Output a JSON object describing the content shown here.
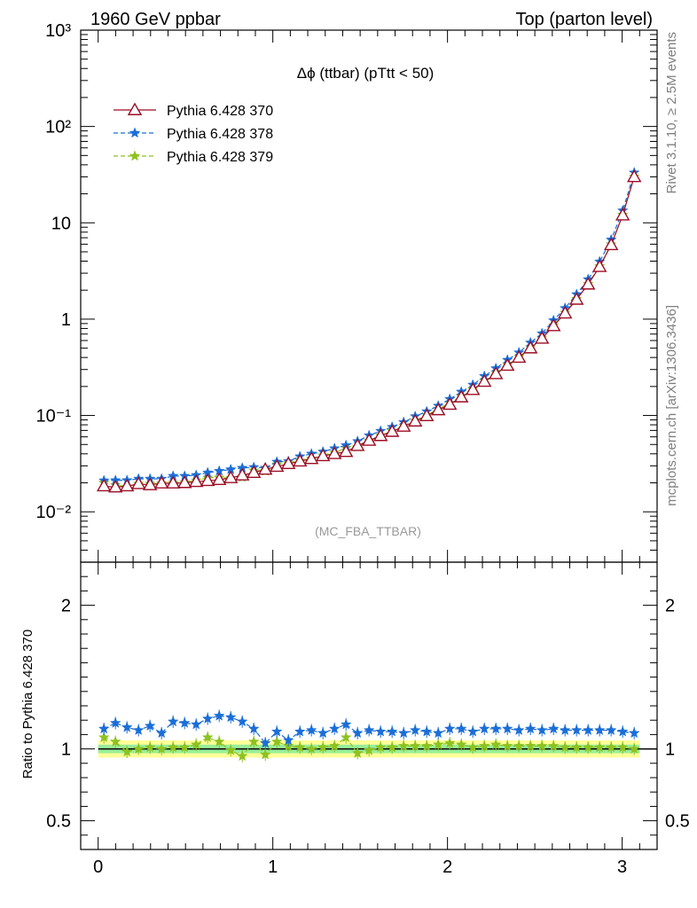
{
  "header": {
    "left": "1960 GeV ppbar",
    "right": "Top (parton level)"
  },
  "side": {
    "upper": "Rivet 3.1.10, ≥ 2.5M events",
    "lower": "mcplots.cern.ch [arXiv:1306.3436]"
  },
  "chart_data": {
    "type": "line",
    "title": "Δϕ (ttbar) (pTtt < 50)",
    "watermark": "(MC_FBA_TTBAR)",
    "xlim": [
      -0.1,
      3.2
    ],
    "xticks": [
      0,
      1,
      2,
      3
    ],
    "main": {
      "yscale": "log",
      "ylim": [
        0.003,
        1000
      ],
      "ytick_labels": [
        "10⁻²",
        "10⁻¹",
        "1",
        "10",
        "10²",
        "10³"
      ],
      "ytick_values": [
        0.01,
        0.1,
        1,
        10,
        100,
        1000
      ]
    },
    "ratio": {
      "ylabel": "Ratio to Pythia 6.428 370",
      "ylim": [
        0.3,
        2.3
      ],
      "yticks": [
        0.5,
        1,
        2
      ],
      "ytick_labels": [
        "0.5",
        "1",
        "2"
      ]
    },
    "x": [
      0.033,
      0.099,
      0.165,
      0.231,
      0.297,
      0.363,
      0.429,
      0.495,
      0.561,
      0.627,
      0.693,
      0.759,
      0.825,
      0.891,
      0.957,
      1.023,
      1.089,
      1.155,
      1.221,
      1.287,
      1.353,
      1.419,
      1.485,
      1.551,
      1.617,
      1.683,
      1.749,
      1.815,
      1.881,
      1.947,
      2.013,
      2.079,
      2.145,
      2.211,
      2.277,
      2.343,
      2.409,
      2.475,
      2.541,
      2.607,
      2.673,
      2.739,
      2.805,
      2.871,
      2.937,
      3.003,
      3.069
    ],
    "series": [
      {
        "name": "Pythia 6.428 370",
        "color": "#9b0d24",
        "marker": "triangle-open",
        "dash": "solid",
        "values": [
          0.0185,
          0.018,
          0.0185,
          0.0195,
          0.019,
          0.0198,
          0.0198,
          0.02,
          0.0205,
          0.021,
          0.0215,
          0.0225,
          0.024,
          0.0255,
          0.0275,
          0.0295,
          0.0315,
          0.0335,
          0.0355,
          0.038,
          0.04,
          0.042,
          0.0485,
          0.055,
          0.0615,
          0.068,
          0.077,
          0.087,
          0.099,
          0.114,
          0.13,
          0.155,
          0.185,
          0.225,
          0.27,
          0.33,
          0.4,
          0.5,
          0.63,
          0.85,
          1.15,
          1.6,
          2.3,
          3.5,
          5.9,
          12.0,
          30.0
        ],
        "ratio": [
          1,
          1,
          1,
          1,
          1,
          1,
          1,
          1,
          1,
          1,
          1,
          1,
          1,
          1,
          1,
          1,
          1,
          1,
          1,
          1,
          1,
          1,
          1,
          1,
          1,
          1,
          1,
          1,
          1,
          1,
          1,
          1,
          1,
          1,
          1,
          1,
          1,
          1,
          1,
          1,
          1,
          1,
          1,
          1,
          1,
          1,
          1
        ]
      },
      {
        "name": "Pythia 6.428 378",
        "color": "#1a6ed8",
        "marker": "star",
        "dash": "dashed",
        "values": [
          0.0211,
          0.0212,
          0.0212,
          0.022,
          0.022,
          0.022,
          0.0235,
          0.0235,
          0.024,
          0.0255,
          0.0265,
          0.0275,
          0.0285,
          0.029,
          0.0286,
          0.033,
          0.0335,
          0.0375,
          0.04,
          0.042,
          0.0455,
          0.049,
          0.054,
          0.062,
          0.069,
          0.076,
          0.085,
          0.098,
          0.11,
          0.126,
          0.148,
          0.176,
          0.208,
          0.256,
          0.308,
          0.377,
          0.45,
          0.57,
          0.71,
          0.97,
          1.3,
          1.81,
          2.59,
          3.95,
          6.67,
          13.4,
          33.2
        ],
        "ratio": [
          1.14,
          1.18,
          1.15,
          1.13,
          1.16,
          1.11,
          1.19,
          1.18,
          1.17,
          1.21,
          1.23,
          1.22,
          1.19,
          1.14,
          1.04,
          1.12,
          1.06,
          1.12,
          1.13,
          1.11,
          1.14,
          1.17,
          1.11,
          1.13,
          1.12,
          1.12,
          1.11,
          1.13,
          1.12,
          1.11,
          1.14,
          1.14,
          1.12,
          1.14,
          1.14,
          1.14,
          1.13,
          1.14,
          1.13,
          1.14,
          1.13,
          1.13,
          1.13,
          1.13,
          1.13,
          1.12,
          1.11
        ]
      },
      {
        "name": "Pythia 6.428 379",
        "color": "#8dc21f",
        "marker": "star",
        "dash": "dashed",
        "values": [
          0.02,
          0.019,
          0.0182,
          0.0195,
          0.0195,
          0.0198,
          0.02,
          0.0202,
          0.0211,
          0.0226,
          0.0226,
          0.0223,
          0.0228,
          0.0268,
          0.0265,
          0.031,
          0.032,
          0.034,
          0.0356,
          0.0385,
          0.041,
          0.046,
          0.047,
          0.0545,
          0.062,
          0.069,
          0.0783,
          0.0885,
          0.101,
          0.117,
          0.135,
          0.158,
          0.187,
          0.23,
          0.277,
          0.337,
          0.406,
          0.509,
          0.641,
          0.863,
          1.166,
          1.62,
          2.33,
          3.54,
          5.97,
          12.1,
          30.2
        ],
        "ratio": [
          1.08,
          1.05,
          0.98,
          1.0,
          1.01,
          1.0,
          1.01,
          1.01,
          1.03,
          1.08,
          1.05,
          0.99,
          0.95,
          1.05,
          0.96,
          1.05,
          1.02,
          1.01,
          1.0,
          1.01,
          1.02,
          1.08,
          0.97,
          0.99,
          1.01,
          1.01,
          1.02,
          1.02,
          1.02,
          1.03,
          1.04,
          1.03,
          1.01,
          1.02,
          1.03,
          1.02,
          1.02,
          1.02,
          1.02,
          1.02,
          1.01,
          1.01,
          1.01,
          1.01,
          1.01,
          1.01,
          1.0
        ]
      }
    ]
  }
}
